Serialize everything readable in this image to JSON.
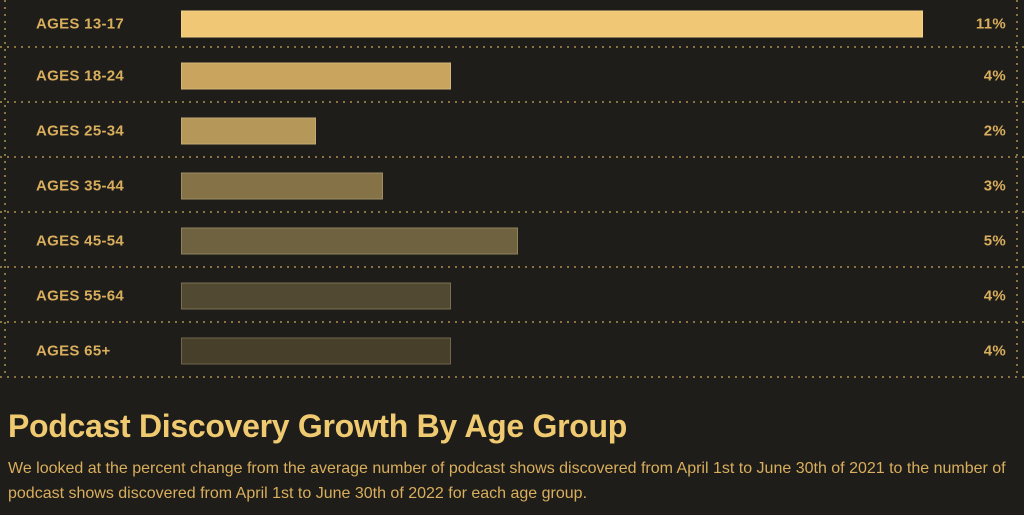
{
  "theme": {
    "background": "#1e1d1a",
    "label_gold": "#d9ae5c",
    "title_gold": "#f0ca70",
    "dot_color": "#8a7440",
    "bar_border": "rgba(255,240,200,0.22)"
  },
  "chart_data": {
    "type": "bar",
    "orientation": "horizontal",
    "title": "Podcast Discovery Growth By Age Group",
    "categories": [
      "AGES 13-17",
      "AGES 18-24",
      "AGES 25-34",
      "AGES 35-44",
      "AGES 45-54",
      "AGES 55-64",
      "AGES 65+"
    ],
    "values": [
      11,
      4,
      2,
      3,
      5,
      4,
      4
    ],
    "value_labels": [
      "11%",
      "4%",
      "2%",
      "3%",
      "5%",
      "4%",
      "4%"
    ],
    "bar_colors": [
      "#f0c875",
      "#c8a45e",
      "#b49759",
      "#857246",
      "#6f6240",
      "#524932",
      "#483f2b"
    ],
    "unit": "percent change",
    "xlim": [
      0,
      11
    ],
    "grid": "dotted row separators",
    "legend": "none"
  },
  "footer": {
    "title": "Podcast Discovery Growth By Age Group",
    "description": "We looked at the percent change from the average number of podcast shows discovered from April 1st to June 30th of 2021 to the number of podcast shows discovered from April 1st to June 30th of 2022 for each age group."
  }
}
